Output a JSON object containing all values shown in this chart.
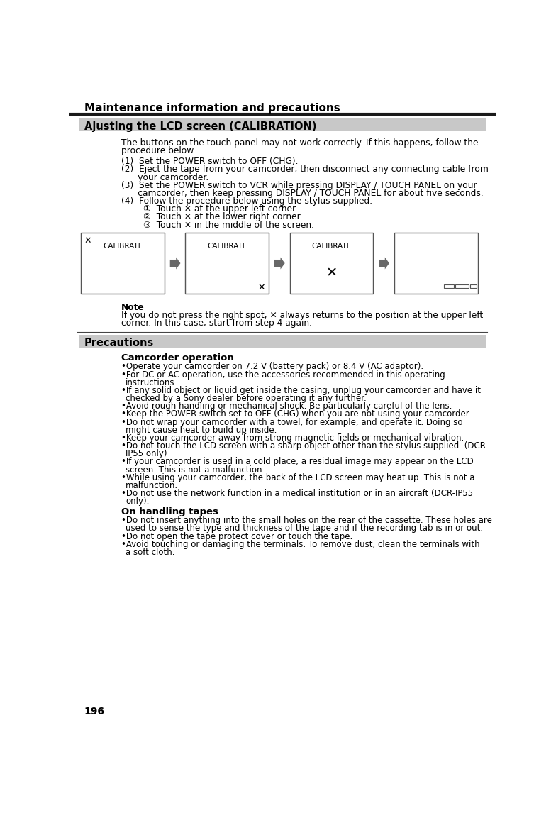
{
  "title": "Maintenance information and precautions",
  "page_num": "196",
  "section1_title": "Ajusting the LCD screen (CALIBRATION)",
  "note_title": "Note",
  "note_body_lines": [
    "If you do not press the right spot, ✕ always returns to the position at the upper left",
    "corner. In this case, start from step 4 again."
  ],
  "section2_title": "Precautions",
  "subsection1_title": "Camcorder operation",
  "subsection1_bullets": [
    "Operate your camcorder on 7.2 V (battery pack) or 8.4 V (AC adaptor).",
    "For DC or AC operation, use the accessories recommended in this operating\ninstructions.",
    "If any solid object or liquid get inside the casing, unplug your camcorder and have it\nchecked by a Sony dealer before operating it any further.",
    "Avoid rough handling or mechanical shock. Be particularly careful of the lens.",
    "Keep the POWER switch set to OFF (CHG) when you are not using your camcorder.",
    "Do not wrap your camcorder with a towel, for example, and operate it. Doing so\nmight cause heat to build up inside.",
    "Keep your camcorder away from strong magnetic fields or mechanical vibration.",
    "Do not touch the LCD screen with a sharp object other than the stylus supplied. (DCR-\nIP55 only)",
    "If your camcorder is used in a cold place, a residual image may appear on the LCD\nscreen. This is not a malfunction.",
    "While using your camcorder, the back of the LCD screen may heat up. This is not a\nmalfunction.",
    "Do not use the network function in a medical institution or in an aircraft (DCR-IP55\nonly)."
  ],
  "subsection2_title": "On handling tapes",
  "subsection2_bullets": [
    "Do not insert anything into the small holes on the rear of the cassette. These holes are\nused to sense the type and thickness of the tape and if the recording tab is in or out.",
    "Do not open the tape protect cover or touch the tape.",
    "Avoid touching or damaging the terminals. To remove dust, clean the terminals with\na soft cloth."
  ],
  "body_lines": [
    "The buttons on the touch panel may not work correctly. If this happens, follow the",
    "procedure below."
  ],
  "step1": "(1)  Set the POWER switch to OFF (CHG).",
  "step2a": "(2)  Eject the tape from your camcorder, then disconnect any connecting cable from",
  "step2b": "      your camcorder.",
  "step3a": "(3)  Set the POWER switch to VCR while pressing DISPLAY / TOUCH PANEL on your",
  "step3b": "      camcorder, then keep pressing DISPLAY / TOUCH PANEL for about five seconds.",
  "step4": "(4)  Follow the procedure below using the stylus supplied.",
  "substep1": "①  Touch ✕ at the upper left corner.",
  "substep2": "②  Touch ✕ at the lower right corner.",
  "substep3": "③  Touch ✕ in the middle of the screen.",
  "bg_color": "#ffffff",
  "title_bar_color": "#1a1a1a",
  "section_header_bg": "#c8c8c8",
  "box_border_color": "#555555",
  "arrow_color": "#686868"
}
